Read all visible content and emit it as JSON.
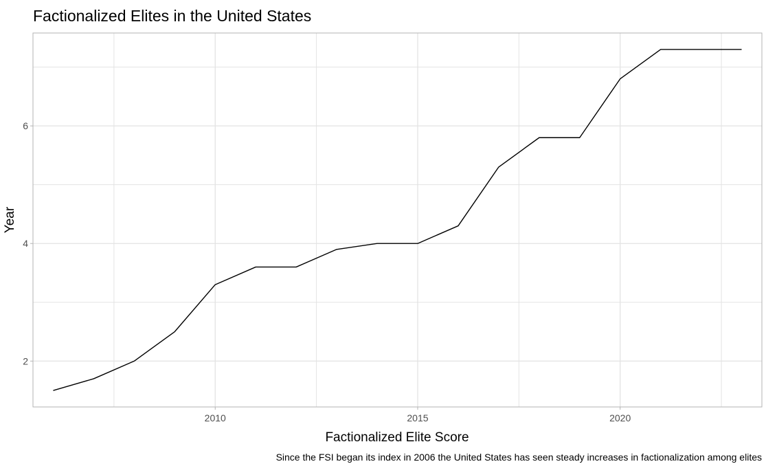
{
  "chart_data": {
    "type": "line",
    "title": "Factionalized Elites in the United States",
    "xlabel": "Factionalized Elite Score",
    "ylabel": "Year",
    "caption": "Since the FSI began its index in 2006 the United States has seen steady increases in factionalization among elites",
    "x": [
      2006,
      2007,
      2008,
      2009,
      2010,
      2011,
      2012,
      2013,
      2014,
      2015,
      2016,
      2017,
      2018,
      2019,
      2020,
      2021,
      2022,
      2023
    ],
    "series": [
      {
        "values": [
          1.5,
          1.7,
          2.0,
          2.5,
          3.3,
          3.6,
          3.6,
          3.9,
          4.0,
          4.0,
          4.3,
          5.3,
          5.8,
          5.8,
          6.8,
          7.3,
          7.3,
          7.3
        ]
      }
    ],
    "xlim": [
      2005.5,
      2023.5
    ],
    "ylim": [
      1.22,
      7.58
    ],
    "x_ticks": [
      2010,
      2015,
      2020
    ],
    "x_tick_labels": [
      "2010",
      "2015",
      "2020"
    ],
    "x_minor_ticks": [
      2007.5,
      2012.5,
      2017.5,
      2022.5
    ],
    "y_ticks": [
      2,
      4,
      6
    ],
    "y_tick_labels": [
      "2",
      "4",
      "6"
    ],
    "y_minor_ticks": [
      3,
      5,
      7
    ],
    "grid": true,
    "legend": "none",
    "colors": {
      "line": "#000000",
      "grid": "#e3e3e3",
      "panel_border": "#b3b3b3",
      "background": "#ffffff",
      "tick_text": "#4d4d4d"
    }
  }
}
